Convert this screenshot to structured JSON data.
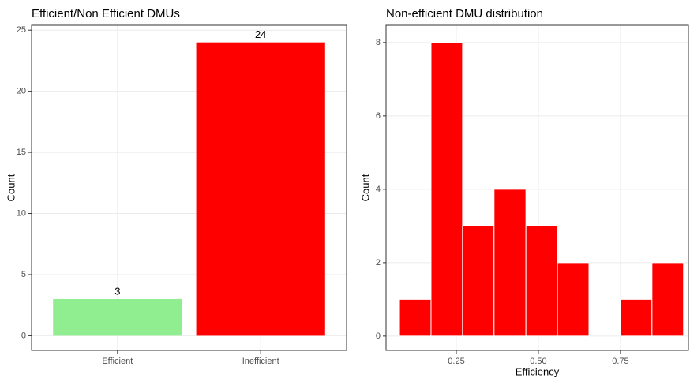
{
  "chart_data": [
    {
      "type": "bar",
      "title": "Efficient/Non Efficient DMUs",
      "y_label": "Count",
      "categories": [
        "Efficient",
        "Inefficient"
      ],
      "values": [
        3,
        24
      ],
      "colors": [
        "#90ee90",
        "#ff0000"
      ],
      "ylim": [
        -1.2,
        25.4
      ],
      "yticks": [
        0,
        5,
        10,
        15,
        20,
        25
      ],
      "grid": true
    },
    {
      "type": "histogram",
      "title": "Non-efficient DMU distribution",
      "x_label": "Efficiency",
      "y_label": "Count",
      "bins": [
        0.077,
        0.173,
        0.269,
        0.365,
        0.462,
        0.558,
        0.654,
        0.75,
        0.846,
        0.942
      ],
      "values": [
        1,
        8,
        3,
        4,
        3,
        2,
        0,
        1,
        2
      ],
      "color": "#ff0000",
      "xlim": [
        0.036,
        0.957
      ],
      "xticks": [
        0.25,
        {
          "value": 0.5,
          "label": "0.50"
        },
        0.75
      ],
      "ylim": [
        -0.39,
        8.47
      ],
      "yticks": [
        0,
        2,
        4,
        6,
        8
      ],
      "grid": true
    }
  ]
}
